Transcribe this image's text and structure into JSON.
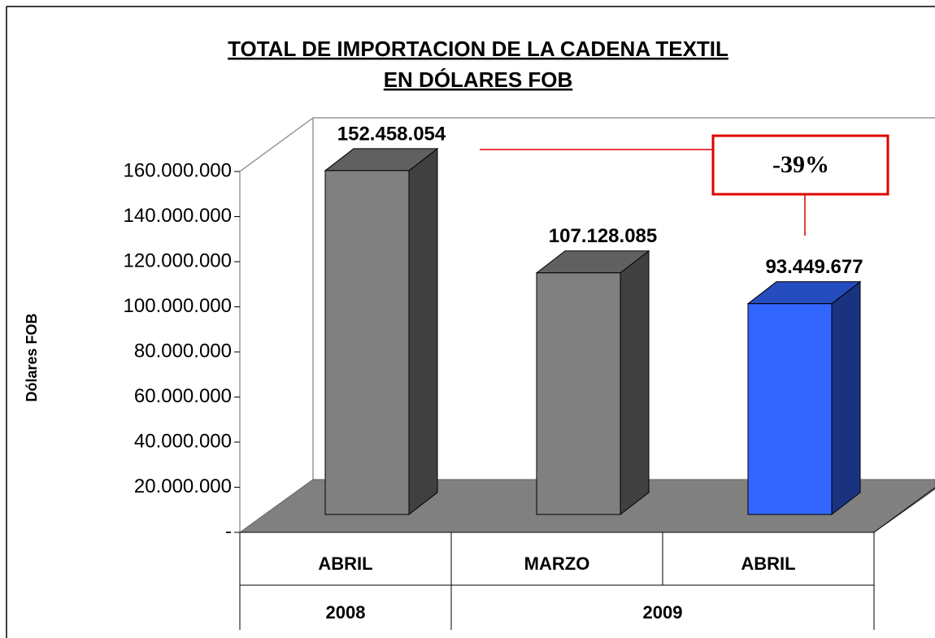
{
  "chart_data": {
    "type": "bar3d",
    "title": [
      "TOTAL DE IMPORTACION DE LA CADENA TEXTIL",
      "EN  DÓLARES FOB"
    ],
    "y_label": "Dólares FOB",
    "categories": [
      "ABRIL",
      "MARZO",
      "ABRIL"
    ],
    "groups": [
      "2008",
      "2009"
    ],
    "values": [
      152458054,
      107128085,
      93449677
    ],
    "value_labels": [
      "152.458.054",
      "107.128.085",
      "93.449.677"
    ],
    "colors": [
      "#808080",
      "#808080",
      "#3366ff"
    ],
    "ylim": [
      0,
      160000000
    ],
    "yticks": [
      {
        "value": 0,
        "label": "-"
      },
      {
        "value": 20000000,
        "label": "20.000.000"
      },
      {
        "value": 40000000,
        "label": "40.000.000"
      },
      {
        "value": 60000000,
        "label": "60.000.000"
      },
      {
        "value": 80000000,
        "label": "80.000.000"
      },
      {
        "value": 100000000,
        "label": "100.000.000"
      },
      {
        "value": 120000000,
        "label": "120.000.000"
      },
      {
        "value": 140000000,
        "label": "140.000.000"
      },
      {
        "value": 160000000,
        "label": "160.000.000"
      }
    ],
    "annotation": "-39%"
  }
}
